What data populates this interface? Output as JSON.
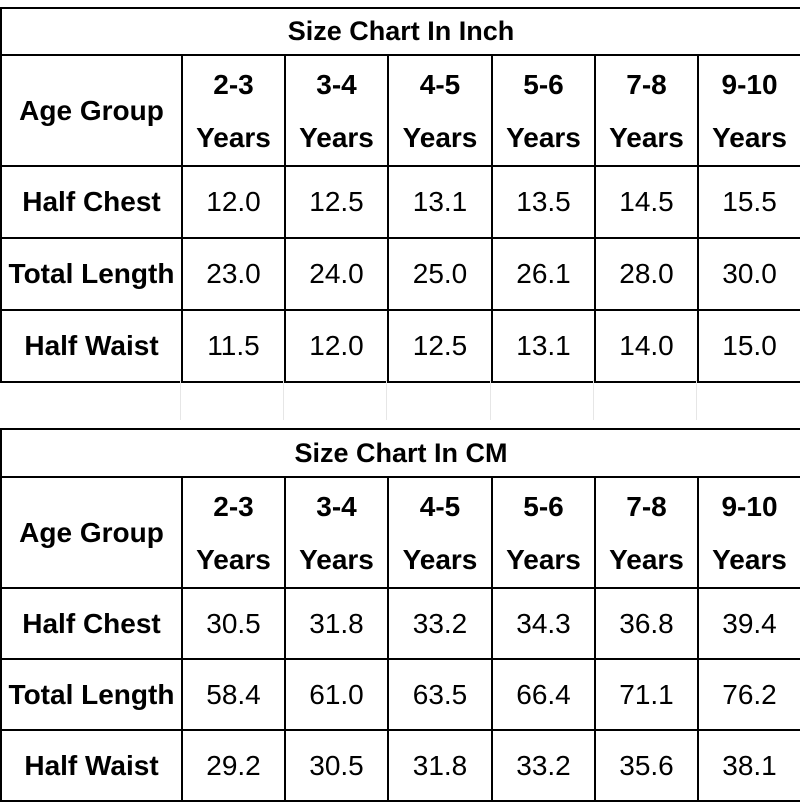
{
  "tables": [
    {
      "title": "Size Chart In Inch",
      "header": {
        "label": "Age Group",
        "ages": [
          {
            "range": "2-3",
            "unit": "Years"
          },
          {
            "range": "3-4",
            "unit": "Years"
          },
          {
            "range": "4-5",
            "unit": "Years"
          },
          {
            "range": "5-6",
            "unit": "Years"
          },
          {
            "range": "7-8",
            "unit": "Years"
          },
          {
            "range": "9-10",
            "unit": "Years"
          }
        ]
      },
      "rows": [
        {
          "label": "Half Chest",
          "values": [
            "12.0",
            "12.5",
            "13.1",
            "13.5",
            "14.5",
            "15.5"
          ]
        },
        {
          "label": "Total Length",
          "values": [
            "23.0",
            "24.0",
            "25.0",
            "26.1",
            "28.0",
            "30.0"
          ]
        },
        {
          "label": "Half Waist",
          "values": [
            "11.5",
            "12.0",
            "12.5",
            "13.1",
            "14.0",
            "15.0"
          ]
        }
      ]
    },
    {
      "title": "Size Chart In CM",
      "header": {
        "label": "Age Group",
        "ages": [
          {
            "range": "2-3",
            "unit": "Years"
          },
          {
            "range": "3-4",
            "unit": "Years"
          },
          {
            "range": "4-5",
            "unit": "Years"
          },
          {
            "range": "5-6",
            "unit": "Years"
          },
          {
            "range": "7-8",
            "unit": "Years"
          },
          {
            "range": "9-10",
            "unit": "Years"
          }
        ]
      },
      "rows": [
        {
          "label": "Half Chest",
          "values": [
            "30.5",
            "31.8",
            "33.2",
            "34.3",
            "36.8",
            "39.4"
          ]
        },
        {
          "label": "Total Length",
          "values": [
            "58.4",
            "61.0",
            "63.5",
            "66.4",
            "71.1",
            "76.2"
          ]
        },
        {
          "label": "Half Waist",
          "values": [
            "29.2",
            "30.5",
            "31.8",
            "33.2",
            "35.6",
            "38.1"
          ]
        }
      ]
    }
  ]
}
